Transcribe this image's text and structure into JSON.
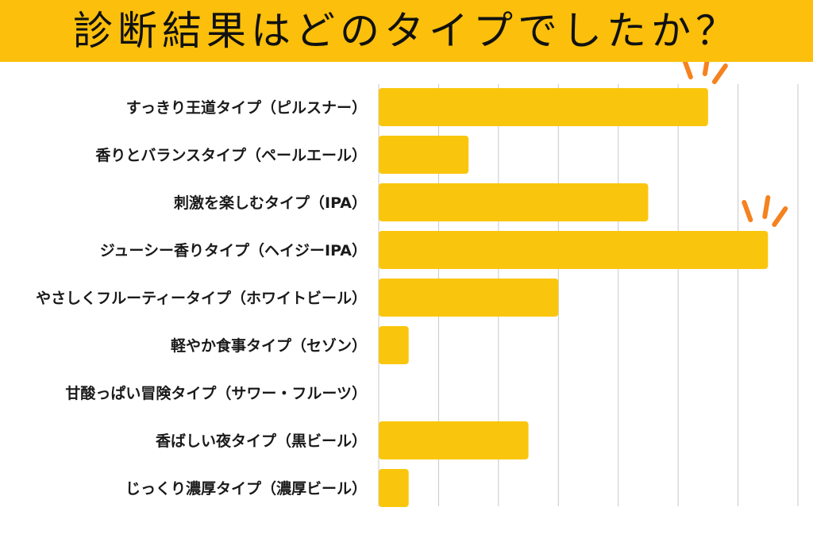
{
  "title": "診断結果はどのタイプでしたか？",
  "colors": {
    "title_bg": "#fbbf0c",
    "bar": "#fac60d",
    "accent": "#f58220",
    "grid": "#c8c8c8"
  },
  "chart_data": {
    "type": "bar",
    "orientation": "horizontal",
    "categories": [
      "すっきり王道タイプ（ピルスナー）",
      "香りとバランスタイプ（ペールエール）",
      "刺激を楽しむタイプ（IPA）",
      "ジューシー香りタイプ（ヘイジーIPA）",
      "やさしくフルーティータイプ（ホワイトビール）",
      "軽やか食事タイプ（セゾン）",
      "甘酸っぱい冒険タイプ（サワー・フルーツ）",
      "香ばしい夜タイプ（黒ビール）",
      "じっくり濃厚タイプ（濃厚ビール）"
    ],
    "values": [
      11,
      3,
      9,
      13,
      6,
      1,
      0,
      5,
      1
    ],
    "xlim": [
      0,
      14
    ],
    "grid": true,
    "highlighted": [
      0,
      3
    ]
  }
}
